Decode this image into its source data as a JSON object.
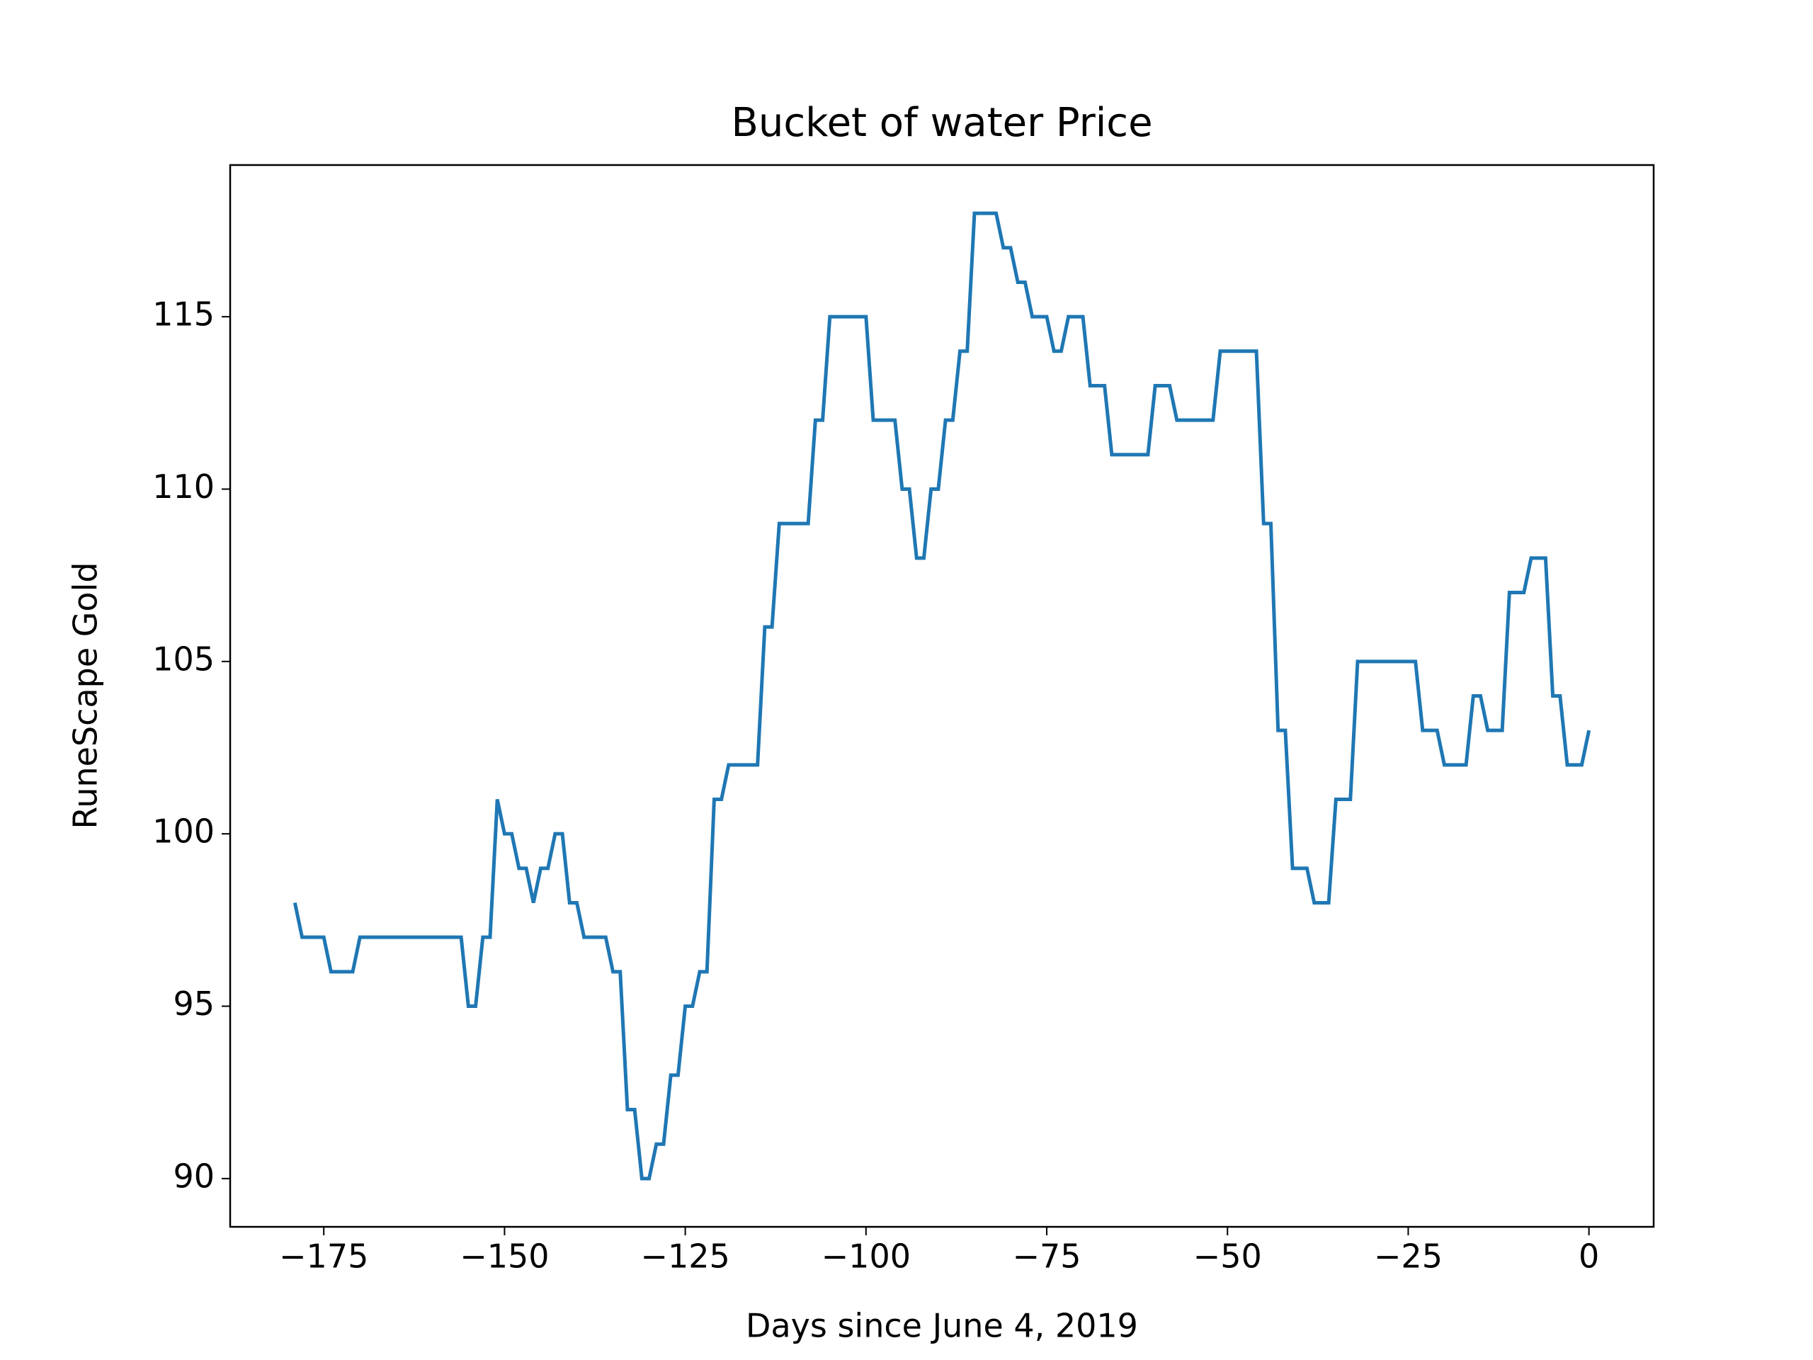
{
  "chart_data": {
    "type": "line",
    "title": "Bucket of water Price",
    "x_label": "Days since June 4, 2019",
    "y_label": "RuneScape Gold",
    "x": [
      -179,
      -178,
      -177,
      -176,
      -175,
      -174,
      -173,
      -172,
      -171,
      -170,
      -169,
      -168,
      -167,
      -166,
      -165,
      -164,
      -163,
      -162,
      -161,
      -160,
      -159,
      -158,
      -157,
      -156,
      -155,
      -154,
      -153,
      -152,
      -151,
      -150,
      -149,
      -148,
      -147,
      -146,
      -145,
      -144,
      -143,
      -142,
      -141,
      -140,
      -139,
      -138,
      -137,
      -136,
      -135,
      -134,
      -133,
      -132,
      -131,
      -130,
      -129,
      -128,
      -127,
      -126,
      -125,
      -124,
      -123,
      -122,
      -121,
      -120,
      -119,
      -118,
      -117,
      -116,
      -115,
      -114,
      -113,
      -112,
      -111,
      -110,
      -109,
      -108,
      -107,
      -106,
      -105,
      -104,
      -103,
      -102,
      -101,
      -100,
      -99,
      -98,
      -97,
      -96,
      -95,
      -94,
      -93,
      -92,
      -91,
      -90,
      -89,
      -88,
      -87,
      -86,
      -85,
      -84,
      -83,
      -82,
      -81,
      -80,
      -79,
      -78,
      -77,
      -76,
      -75,
      -74,
      -73,
      -72,
      -71,
      -70,
      -69,
      -68,
      -67,
      -66,
      -65,
      -64,
      -63,
      -62,
      -61,
      -60,
      -59,
      -58,
      -57,
      -56,
      -55,
      -54,
      -53,
      -52,
      -51,
      -50,
      -49,
      -48,
      -47,
      -46,
      -45,
      -44,
      -43,
      -42,
      -41,
      -40,
      -39,
      -38,
      -37,
      -36,
      -35,
      -34,
      -33,
      -32,
      -31,
      -30,
      -29,
      -28,
      -27,
      -26,
      -25,
      -24,
      -23,
      -22,
      -21,
      -20,
      -19,
      -18,
      -17,
      -16,
      -15,
      -14,
      -13,
      -12,
      -11,
      -10,
      -9,
      -8,
      -7,
      -6,
      -5,
      -4,
      -3,
      -2,
      -1,
      0
    ],
    "series": [
      {
        "name": "Bucket of water",
        "color": "#1f77b4",
        "values": [
          98,
          97,
          97,
          97,
          97,
          96,
          96,
          96,
          96,
          97,
          97,
          97,
          97,
          97,
          97,
          97,
          97,
          97,
          97,
          97,
          97,
          97,
          97,
          97,
          95,
          95,
          97,
          97,
          101,
          100,
          100,
          99,
          99,
          98,
          99,
          99,
          100,
          100,
          98,
          98,
          97,
          97,
          97,
          97,
          96,
          96,
          92,
          92,
          90,
          90,
          91,
          91,
          93,
          93,
          95,
          95,
          96,
          96,
          101,
          101,
          102,
          102,
          102,
          102,
          102,
          106,
          106,
          109,
          109,
          109,
          109,
          109,
          112,
          112,
          115,
          115,
          115,
          115,
          115,
          115,
          112,
          112,
          112,
          112,
          110,
          110,
          108,
          108,
          110,
          110,
          112,
          112,
          114,
          114,
          118,
          118,
          118,
          118,
          117,
          117,
          116,
          116,
          115,
          115,
          115,
          114,
          114,
          115,
          115,
          115,
          113,
          113,
          113,
          111,
          111,
          111,
          111,
          111,
          111,
          113,
          113,
          113,
          112,
          112,
          112,
          112,
          112,
          112,
          114,
          114,
          114,
          114,
          114,
          114,
          109,
          109,
          103,
          103,
          99,
          99,
          99,
          98,
          98,
          98,
          101,
          101,
          101,
          105,
          105,
          105,
          105,
          105,
          105,
          105,
          105,
          105,
          103,
          103,
          103,
          102,
          102,
          102,
          102,
          104,
          104,
          103,
          103,
          103,
          107,
          107,
          107,
          108,
          108,
          108,
          104,
          104,
          102,
          102,
          102,
          103
        ]
      }
    ],
    "xlim": [
      -187.95,
      8.95
    ],
    "ylim": [
      88.6,
      119.4
    ],
    "xticks": [
      {
        "value": -175,
        "label": "−175"
      },
      {
        "value": -150,
        "label": "−150"
      },
      {
        "value": -125,
        "label": "−125"
      },
      {
        "value": -100,
        "label": "−100"
      },
      {
        "value": -75,
        "label": "−75"
      },
      {
        "value": -50,
        "label": "−50"
      },
      {
        "value": -25,
        "label": "−25"
      },
      0
    ],
    "yticks": [
      90,
      95,
      100,
      105,
      110,
      115
    ]
  }
}
